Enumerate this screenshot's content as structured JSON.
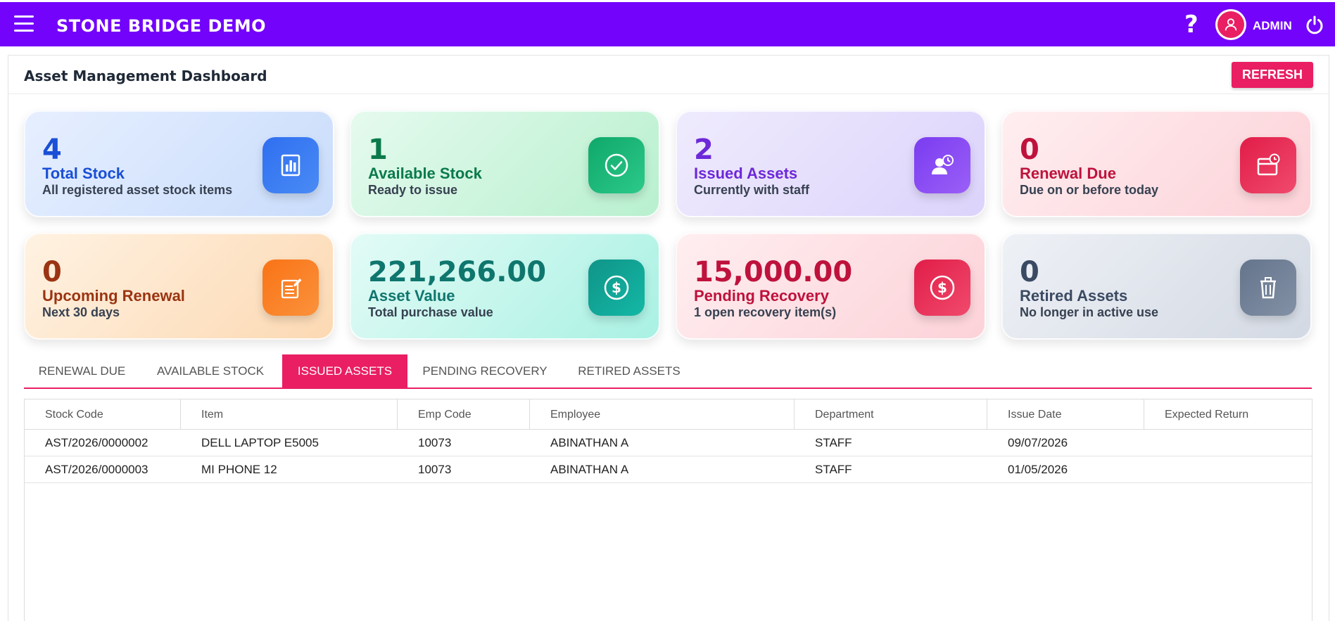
{
  "app": {
    "title": "STONE BRIDGE DEMO",
    "help_symbol": "?",
    "user": "ADMIN"
  },
  "page": {
    "title": "Asset Management Dashboard",
    "refresh_label": "REFRESH"
  },
  "cards": [
    {
      "value": "4",
      "label": "Total Stock",
      "sub": "All registered asset stock items",
      "icon": "bar-chart-icon",
      "color": "#1a4fd6"
    },
    {
      "value": "1",
      "label": "Available Stock",
      "sub": "Ready to issue",
      "icon": "check-circle-icon",
      "color": "#0b7a4b"
    },
    {
      "value": "2",
      "label": "Issued Assets",
      "sub": "Currently with staff",
      "icon": "user-clock-icon",
      "color": "#6d28d9"
    },
    {
      "value": "0",
      "label": "Renewal Due",
      "sub": "Due on or before today",
      "icon": "calendar-clock-icon",
      "color": "#be123c"
    },
    {
      "value": "0",
      "label": "Upcoming Renewal",
      "sub": "Next 30 days",
      "icon": "edit-document-icon",
      "color": "#9a3412"
    },
    {
      "value": "221,266.00",
      "label": "Asset Value",
      "sub": "Total purchase value",
      "icon": "dollar-circle-icon",
      "color": "#0f766e"
    },
    {
      "value": "15,000.00",
      "label": "Pending Recovery",
      "sub": "1 open recovery item(s)",
      "icon": "dollar-circle-icon",
      "color": "#be123c"
    },
    {
      "value": "0",
      "label": "Retired Assets",
      "sub": "No longer in active use",
      "icon": "trash-icon",
      "color": "#3b4a63"
    }
  ],
  "tabs": [
    {
      "label": "RENEWAL DUE",
      "active": false
    },
    {
      "label": "AVAILABLE STOCK",
      "active": false
    },
    {
      "label": "ISSUED ASSETS",
      "active": true
    },
    {
      "label": "PENDING RECOVERY",
      "active": false
    },
    {
      "label": "RETIRED ASSETS",
      "active": false
    }
  ],
  "table": {
    "columns": [
      "Stock Code",
      "Item",
      "Emp Code",
      "Employee",
      "Department",
      "Issue Date",
      "Expected Return"
    ],
    "rows": [
      [
        "AST/2026/0000002",
        "DELL LAPTOP E5005",
        "10073",
        "ABINATHAN A",
        "STAFF",
        "09/07/2026",
        ""
      ],
      [
        "AST/2026/0000003",
        "MI PHONE 12",
        "10073",
        "ABINATHAN A",
        "STAFF",
        "01/05/2026",
        ""
      ]
    ]
  },
  "colors": {
    "topbar": "#7303fb",
    "accent": "#e91e63"
  }
}
